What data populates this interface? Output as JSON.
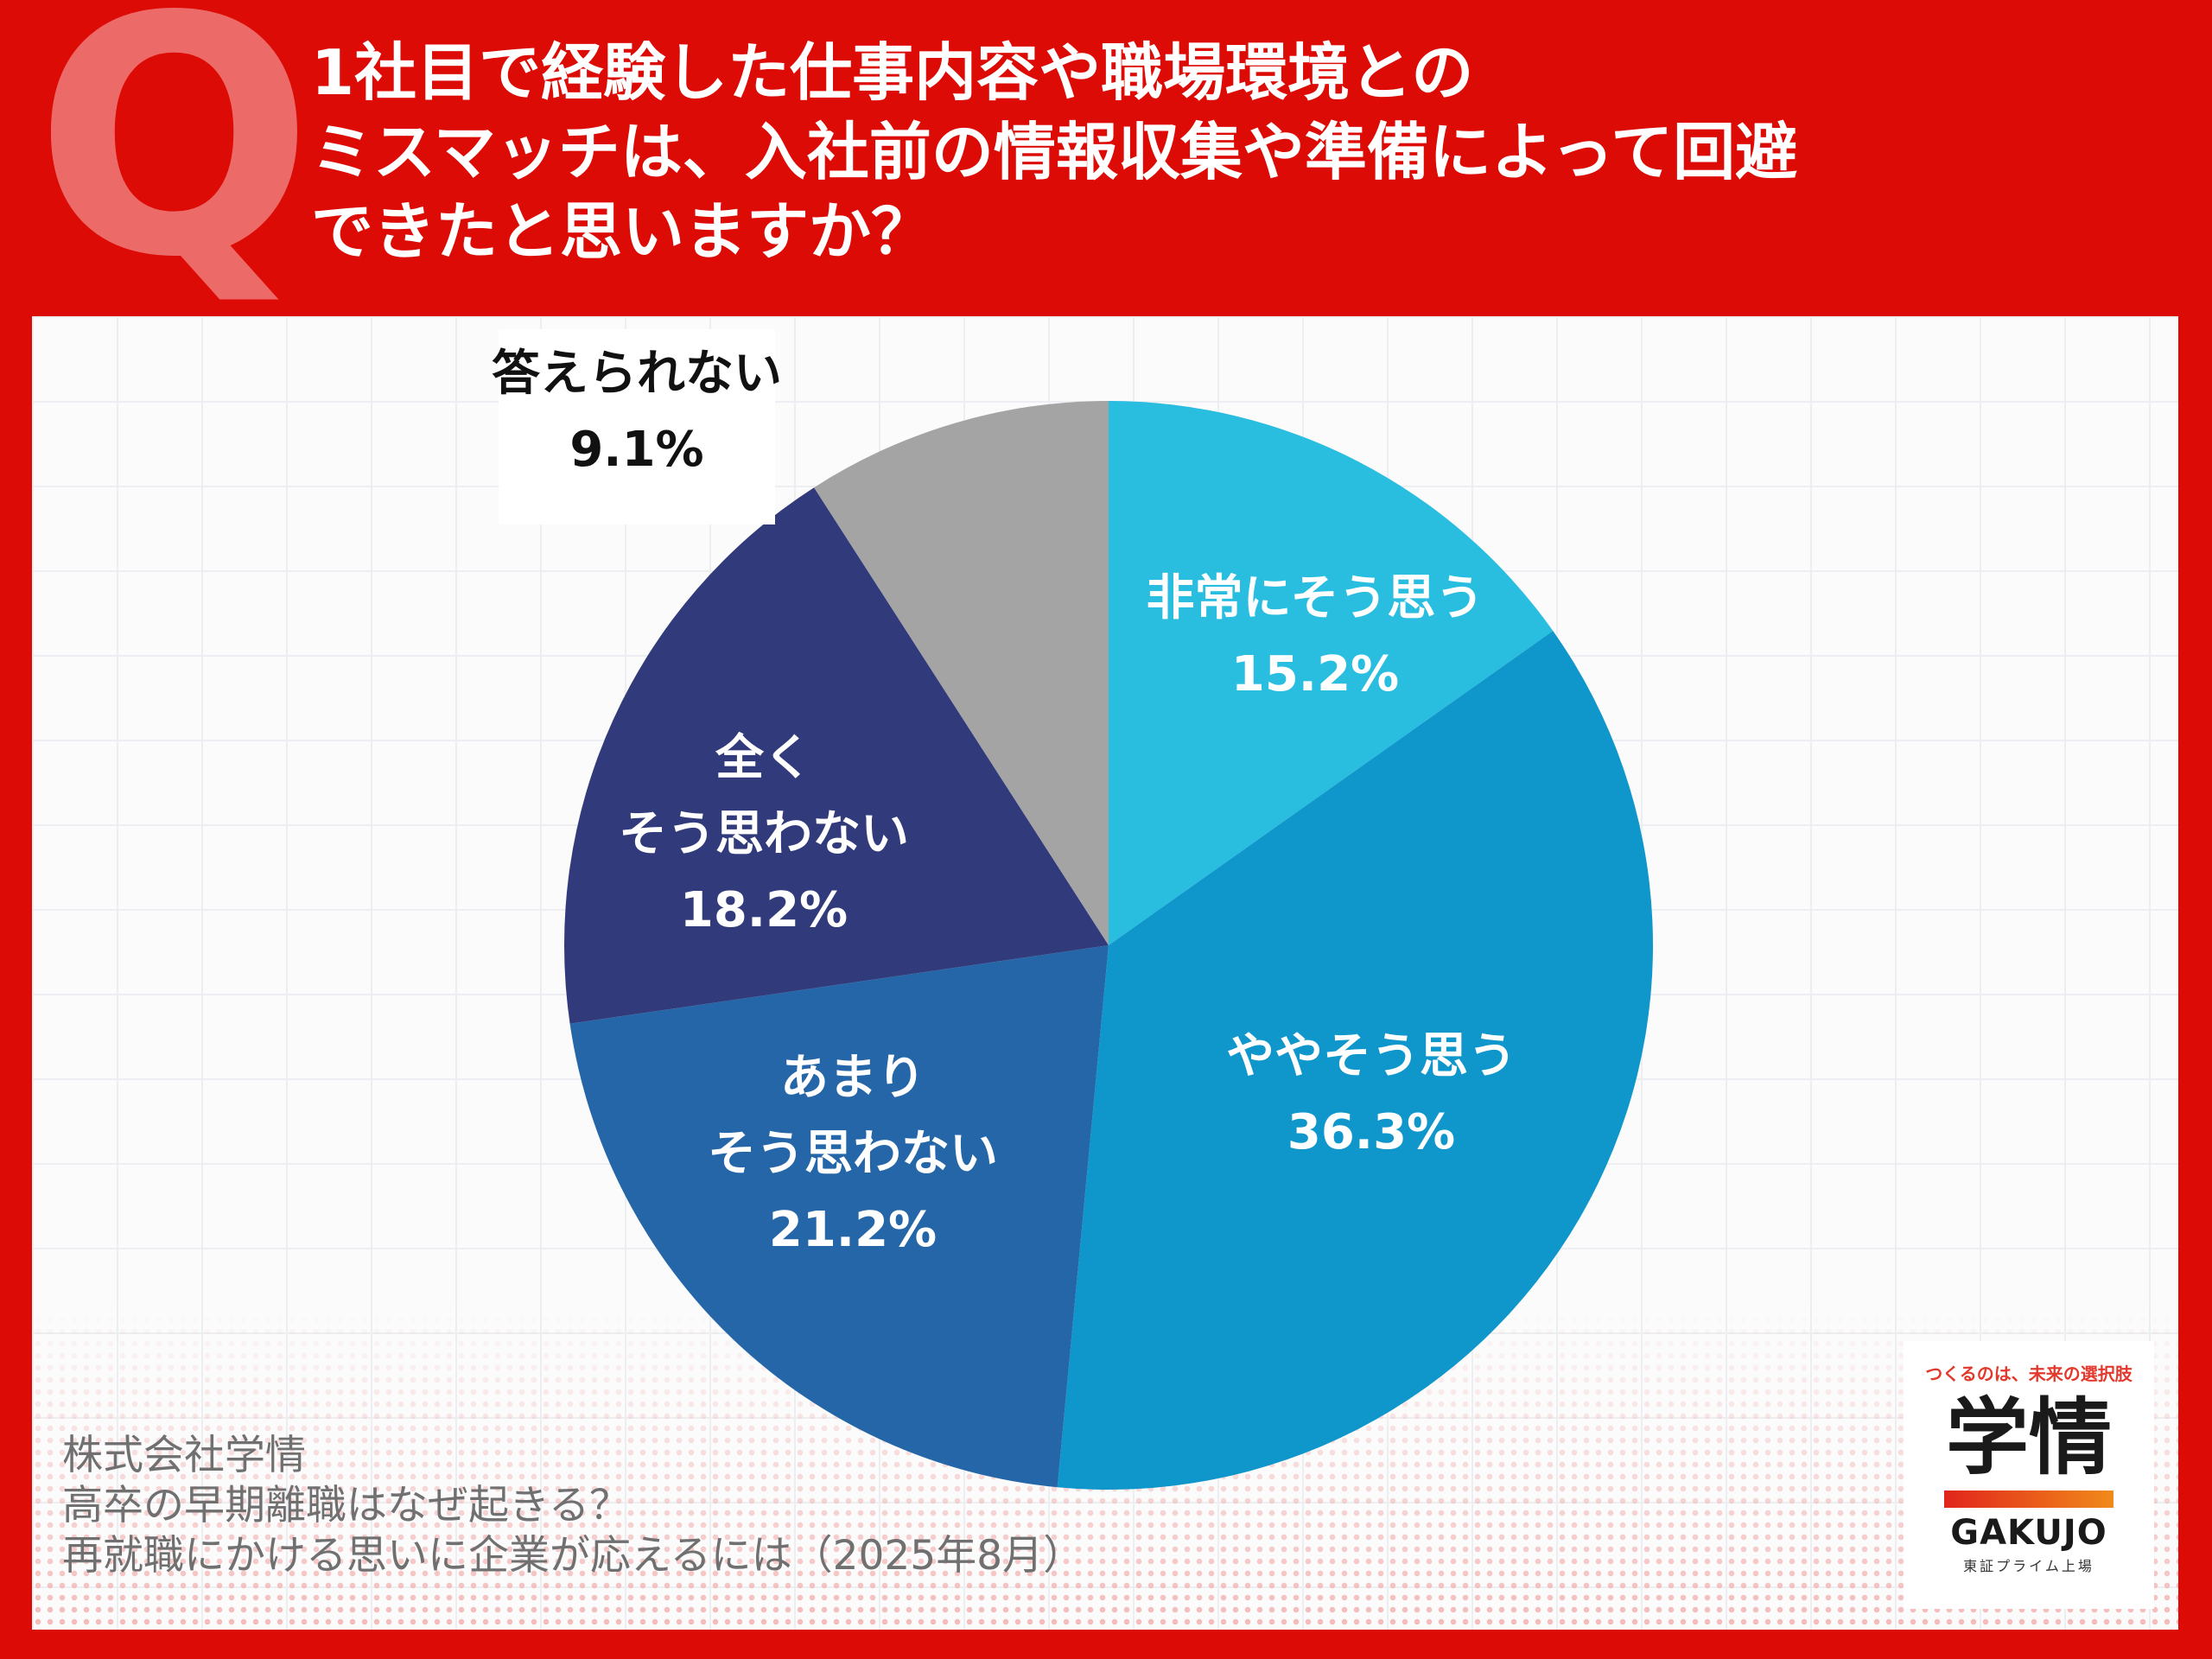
{
  "header": {
    "q_label": "Q",
    "question_lines": [
      "1社目で経験した仕事内容や職場環境との",
      "ミスマッチは、入社前の情報収集や準備によって回避",
      "できたと思いますか？"
    ]
  },
  "chart_data": {
    "type": "pie",
    "start": "12 o'clock, clockwise",
    "slices": [
      {
        "label": "非常にそう思う",
        "value": 15.2,
        "value_label": "15.2%",
        "color": "#29bde0",
        "text_color": "#ffffff"
      },
      {
        "label": "ややそう思う",
        "value": 36.3,
        "value_label": "36.3%",
        "color": "#0f96cb",
        "text_color": "#ffffff"
      },
      {
        "label": "あまりそう思わない",
        "value": 21.2,
        "value_label": "21.2%",
        "color": "#2466a8",
        "text_color": "#ffffff"
      },
      {
        "label": "全くそう思わない",
        "value": 18.2,
        "value_label": "18.2%",
        "color": "#313a7a",
        "text_color": "#ffffff"
      },
      {
        "label": "答えられない",
        "value": 9.1,
        "value_label": "9.1%",
        "color": "#a4a4a4",
        "text_color": "#111111"
      }
    ]
  },
  "source": {
    "lines": [
      "株式会社学情",
      "高卒の早期離職はなぜ起きる？",
      "再就職にかける思いに企業が応えるには（2025年8月）"
    ]
  },
  "logo": {
    "tagline": "つくるのは、未来の選択肢",
    "kanji": "学情",
    "brand": "GAKUJO",
    "listing": "東証プライム上場"
  }
}
